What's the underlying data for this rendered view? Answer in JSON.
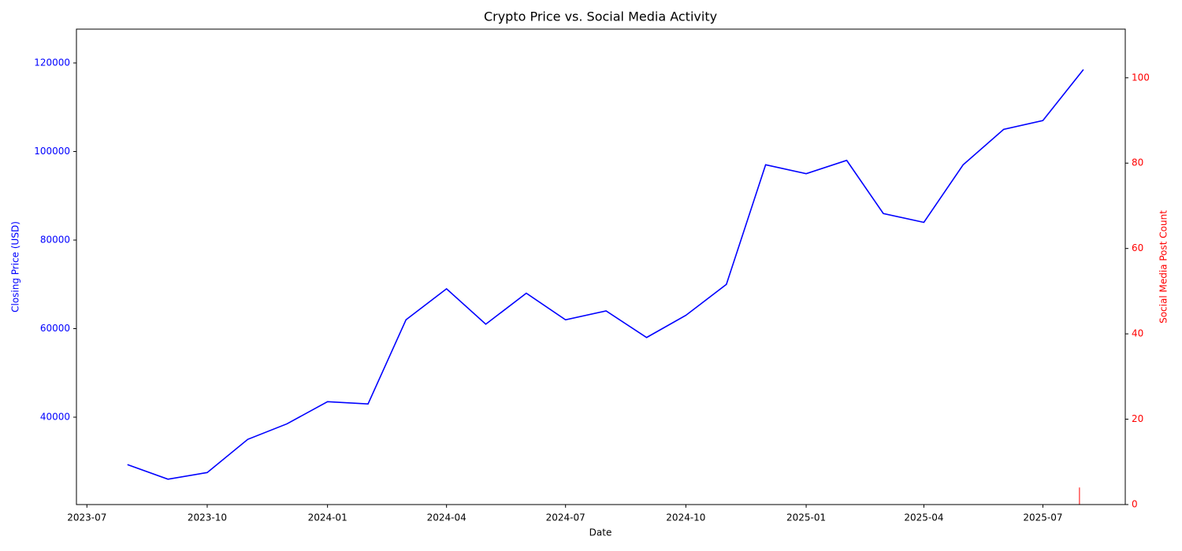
{
  "chart_data": {
    "type": "line",
    "title": "Crypto Price vs. Social Media Activity",
    "x_label": "Date",
    "y_label": "Closing Price (USD)",
    "y2_label": "Social Media Post Count",
    "x": [
      "2023-08",
      "2023-09",
      "2023-10",
      "2023-11",
      "2023-12",
      "2024-01",
      "2024-02",
      "2024-03",
      "2024-04",
      "2024-05",
      "2024-06",
      "2024-07",
      "2024-08",
      "2024-09",
      "2024-10",
      "2024-11",
      "2024-12",
      "2025-01",
      "2025-02",
      "2025-03",
      "2025-04",
      "2025-05",
      "2025-06",
      "2025-07",
      "2025-08"
    ],
    "series": [
      {
        "type": "line",
        "color": "#0000ff",
        "values": [
          29300,
          26000,
          27500,
          35000,
          38500,
          43500,
          43000,
          62000,
          69000,
          61000,
          68000,
          62000,
          64000,
          58000,
          63000,
          70000,
          97000,
          95000,
          98000,
          86000,
          84000,
          97000,
          105000,
          107000,
          118500
        ]
      },
      {
        "type": "bar",
        "axis": "y2",
        "color": "#ff0000",
        "x": [
          "2025-08"
        ],
        "values": [
          4
        ]
      }
    ],
    "xlim": [
      "2023-06-23",
      "2025-09-02"
    ],
    "xticks": [
      "2023-07",
      "2023-10",
      "2024-01",
      "2024-04",
      "2024-07",
      "2024-10",
      "2025-01",
      "2025-04",
      "2025-07"
    ],
    "ylim": [
      20270,
      127640
    ],
    "yticks": [
      40000,
      60000,
      80000,
      100000,
      120000
    ],
    "y2lim": [
      0,
      111.4
    ],
    "y2ticks": [
      0,
      20,
      40,
      60,
      80,
      100
    ],
    "y_color": "#0000ff",
    "y2_color": "#ff0000"
  }
}
